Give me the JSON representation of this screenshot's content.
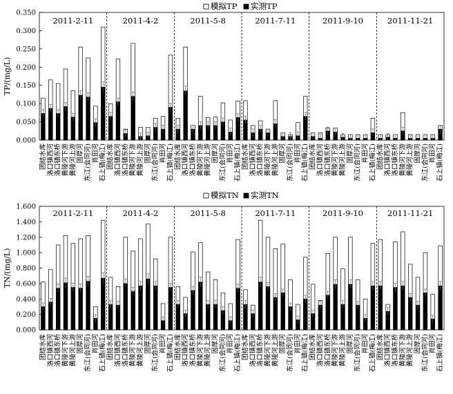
{
  "chart_data": [
    {
      "type": "bar",
      "panel": "TP",
      "ylabel": "TP/(mg/L)",
      "ylim": [
        0,
        0.35
      ],
      "yticks": [
        "0.000",
        "0.050",
        "0.100",
        "0.150",
        "0.200",
        "0.250",
        "0.300",
        "0.350"
      ],
      "legend": [
        "模拟TP",
        "实测TP"
      ],
      "legend_position": "top-center",
      "periods": [
        "2011-2-11",
        "2011-4-2",
        "2011-5-8",
        "2011-7-11",
        "2011-9-10",
        "2011-11-21"
      ],
      "stations": [
        "团结水库",
        "洛口镇西河",
        "洛口镇东桥",
        "黄陵河下游",
        "黄陵河上游",
        "固厚河",
        "东江(会同河)",
        "肖田河",
        "石上镇(梅江)"
      ],
      "series": [
        {
          "name": "模拟TP",
          "style": "hollow",
          "values": [
            [
              0.115,
              0.165,
              0.155,
              0.195,
              0.135,
              0.255,
              0.225,
              0.093,
              0.31
            ],
            [
              0.1,
              0.222,
              0.03,
              0.265,
              0.035,
              0.035,
              0.06,
              0.065,
              0.233
            ],
            [
              0.06,
              0.255,
              0.04,
              0.12,
              0.062,
              0.063,
              0.102,
              0.055,
              0.107
            ],
            [
              0.108,
              0.04,
              0.053,
              0.03,
              0.108,
              0.02,
              0.015,
              0.048,
              0.12
            ],
            [
              0.02,
              0.02,
              0.033,
              0.033,
              0.015,
              0.015,
              0.015,
              0.015,
              0.06
            ],
            [
              0.015,
              0.015,
              0.015,
              0.075,
              0.015,
              0.015,
              0.015,
              0.015,
              0.04
            ]
          ]
        },
        {
          "name": "实测TP",
          "style": "solid",
          "values": [
            [
              0.073,
              0.087,
              0.073,
              0.092,
              0.063,
              0.123,
              0.118,
              0.048,
              0.145
            ],
            [
              0.065,
              0.105,
              0.018,
              0.12,
              0.01,
              0.012,
              0.035,
              0.03,
              0.09
            ],
            [
              0.03,
              0.135,
              0.03,
              0.04,
              0.04,
              0.04,
              0.05,
              0.022,
              0.062
            ],
            [
              0.055,
              0.02,
              0.03,
              0.02,
              0.045,
              0.01,
              0.01,
              0.012,
              0.065
            ],
            [
              0.01,
              0.005,
              0.025,
              0.022,
              0.008,
              0.005,
              0.005,
              0.005,
              0.02
            ],
            [
              0.005,
              0.008,
              0.005,
              0.025,
              0.005,
              0.005,
              0.005,
              0.005,
              0.03
            ]
          ]
        }
      ]
    },
    {
      "type": "bar",
      "panel": "TN",
      "ylabel": "TN/(mg/L)",
      "ylim": [
        0,
        1.6
      ],
      "yticks": [
        "0.000",
        "0.200",
        "0.400",
        "0.600",
        "0.800",
        "1.000",
        "1.200",
        "1.400",
        "1.600"
      ],
      "legend": [
        "模拟TN",
        "实测TN"
      ],
      "legend_position": "top-center",
      "periods": [
        "2011-2-11",
        "2011-4-2",
        "2011-5-8",
        "2011-7-11",
        "2011-9-10",
        "2011-11-21"
      ],
      "stations": [
        "团结水库",
        "洛口镇西河",
        "洛口镇东桥",
        "黄陵河下游",
        "黄陵河上游",
        "固厚河",
        "东江(会同河)",
        "肖田河",
        "石上镇(梅江)"
      ],
      "series": [
        {
          "name": "模拟TN",
          "style": "hollow",
          "values": [
            [
              0.62,
              0.78,
              1.1,
              1.22,
              1.12,
              1.18,
              1.22,
              0.3,
              1.42
            ],
            [
              0.68,
              0.56,
              1.2,
              1.02,
              1.18,
              1.37,
              0.92,
              0.34,
              1.2
            ],
            [
              0.56,
              0.42,
              1.01,
              1.13,
              0.75,
              0.65,
              0.48,
              0.34,
              1.17
            ],
            [
              0.52,
              0.32,
              1.42,
              1.2,
              1.05,
              1.11,
              0.65,
              0.33,
              0.94
            ],
            [
              0.59,
              0.38,
              0.99,
              1.2,
              0.79,
              1.2,
              0.65,
              0.4,
              1.12
            ],
            [
              1.17,
              0.33,
              1.14,
              1.27,
              0.85,
              0.68,
              1.0,
              0.46,
              1.09
            ]
          ]
        },
        {
          "name": "实测TN",
          "style": "solid",
          "values": [
            [
              0.3,
              0.36,
              0.54,
              0.61,
              0.55,
              0.54,
              0.63,
              0.15,
              0.67
            ],
            [
              0.33,
              0.32,
              0.6,
              0.5,
              0.57,
              0.66,
              0.57,
              0.12,
              0.55
            ],
            [
              0.33,
              0.21,
              0.51,
              0.62,
              0.33,
              0.33,
              0.25,
              0.12,
              0.54
            ],
            [
              0.33,
              0.21,
              0.62,
              0.56,
              0.42,
              0.48,
              0.3,
              0.13,
              0.4
            ],
            [
              0.21,
              0.32,
              0.45,
              0.59,
              0.33,
              0.59,
              0.32,
              0.15,
              0.57
            ],
            [
              0.57,
              0.24,
              0.55,
              0.57,
              0.42,
              0.32,
              0.48,
              0.14,
              0.57
            ]
          ]
        }
      ]
    }
  ]
}
